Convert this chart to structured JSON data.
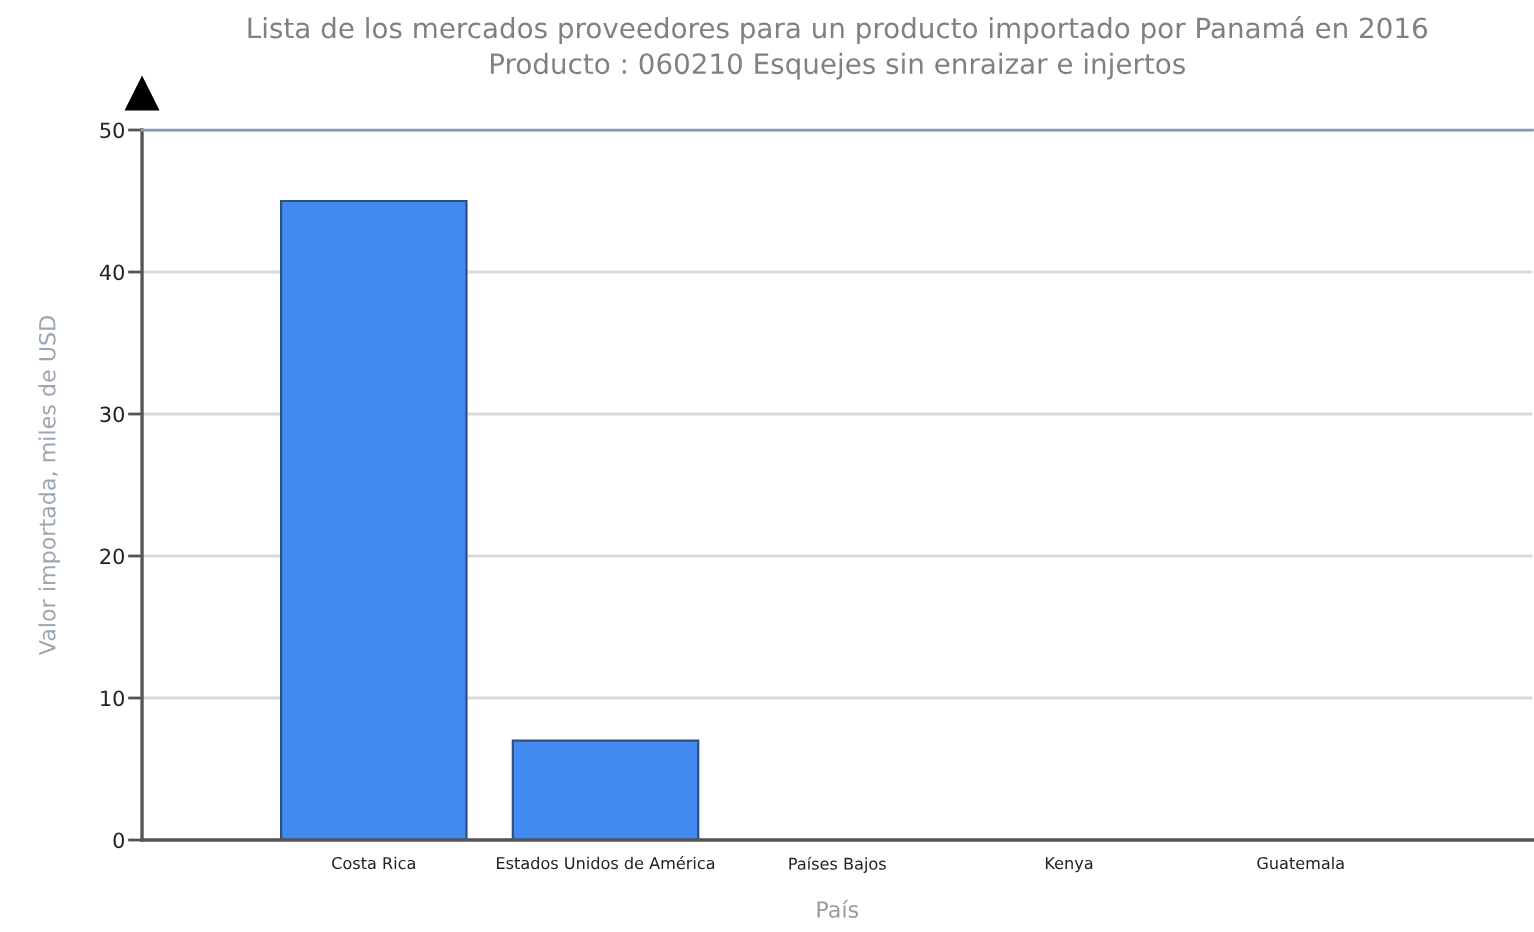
{
  "chart_data": {
    "type": "bar",
    "title": "Lista de los mercados proveedores para un producto importado por Panamá en 2016",
    "subtitle": "Producto : 060210 Esquejes sin enraizar e injertos",
    "xlabel": "País",
    "ylabel": "Valor importada, miles de USD",
    "categories": [
      "Costa Rica",
      "Estados Unidos de América",
      "Países Bajos",
      "Kenya",
      "Guatemala"
    ],
    "values": [
      45,
      7,
      0,
      0,
      0
    ],
    "color": "#418aef",
    "ylim": [
      0,
      50
    ],
    "yticks": [
      0,
      10,
      20,
      30,
      40,
      50
    ],
    "grid": "y"
  }
}
